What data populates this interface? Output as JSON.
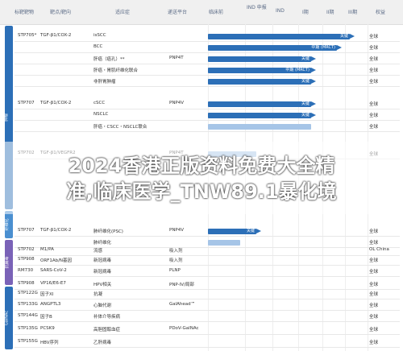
{
  "headers": {
    "target": "标靶靶物",
    "mechanism": "靶点/靶向",
    "indication": "适应症",
    "platform": "递送平台",
    "preclinical": "临床前",
    "ind_enabling": "IND\n申报",
    "ind": "IND",
    "phase1": "I期",
    "phase2": "II期",
    "phase3": "III期",
    "rights": "权益"
  },
  "sections": [
    {
      "label": "肿瘤",
      "color": "#2c6fb7"
    },
    {
      "label": "纤维化",
      "color": "#4a8fd0"
    },
    {
      "label": "抗病毒",
      "color": "#7a62b7"
    },
    {
      "label": "GalNAc",
      "color": "#2c6fb7"
    }
  ],
  "rows": [
    {
      "c1": "STP705*",
      "c2": "TGF-β1/COX-2",
      "c3": "isSCC",
      "c4": "",
      "c5": "全球",
      "bar": 0.88,
      "btxt": "关键"
    },
    {
      "c1": "",
      "c2": "",
      "c3": "BCC",
      "c4": "",
      "c5": "全球",
      "bar": 0.8,
      "btxt": "中期 (MRCT)"
    },
    {
      "c1": "",
      "c2": "",
      "c3": "肝癌（癌孔）**",
      "c4": "PNP4T",
      "c5": "全球",
      "bar": 0.64,
      "btxt": "关键"
    },
    {
      "c1": "",
      "c2": "",
      "c3": "肝癌・胃肌纤维化联合",
      "c4": "",
      "c5": "全球",
      "bar": 0.64,
      "btxt": "中期 (MRCT)"
    },
    {
      "c1": "",
      "c2": "",
      "c3": "非肝胃肿瘤",
      "c4": "",
      "c5": "全球",
      "bar": 0.64,
      "btxt": "关键"
    },
    {
      "c1": "STP707",
      "c2": "TGF-β1/COX-2",
      "c3": "cSCC",
      "c4": "PNP4V",
      "c5": "全球",
      "bar": 0.64,
      "btxt": "关键"
    },
    {
      "c1": "",
      "c2": "",
      "c3": "NSCLC",
      "c4": "",
      "c5": "全球",
      "bar": 0.64,
      "btxt": "关键"
    },
    {
      "c1": "",
      "c2": "",
      "c3": "肝癌・CSCC・NSCLC联合",
      "c4": "",
      "c5": "全球",
      "bar": 0.64,
      "btxt": ""
    },
    {
      "c1": "STP702",
      "c2": "TGF-β1/VEGFR2",
      "c3": "",
      "c4": "PNP4T",
      "c5": "全球",
      "bar": 0.3,
      "btxt": ""
    },
    {
      "c1": "STP707",
      "c2": "TGF-β1/COX-2",
      "c3": "肺纤维化(PSC)",
      "c4": "PNP4V",
      "c5": "全球",
      "bar": 0.3,
      "btxt": "关键"
    },
    {
      "c1": "",
      "c2": "",
      "c3": "肺纤维化",
      "c4": "",
      "c5": "全球",
      "bar": 0.2,
      "btxt": ""
    },
    {
      "c1": "STP702",
      "c2": "M1/PA",
      "c3": "流感",
      "c4": "吸入剂",
      "c5": "OL China",
      "bar": 0.0,
      "btxt": ""
    },
    {
      "c1": "STP908",
      "c2": "ORF1Ab/N基因",
      "c3": "新冠病毒",
      "c4": "吸入剂",
      "c5": "全球",
      "bar": 0.0,
      "btxt": ""
    },
    {
      "c1": "RM730",
      "c2": "SARS-CoV-2",
      "c3": "新冠病毒",
      "c4": "PLNP",
      "c5": "全球",
      "bar": 0.0,
      "btxt": ""
    },
    {
      "c1": "STP908",
      "c2": "VP16/E6-E7",
      "c3": "HPV相关",
      "c4": "PNP-IV/局部",
      "c5": "全球",
      "bar": 0.0,
      "btxt": ""
    },
    {
      "c1": "STP122G",
      "c2": "因子XI",
      "c3": "抗凝",
      "c4": "",
      "c5": "全球",
      "bar": 0.0,
      "btxt": ""
    },
    {
      "c1": "STP133G",
      "c2": "ANGPTL3",
      "c3": "心脑代谢",
      "c4": "GalAhead™",
      "c5": "全球",
      "bar": 0.0,
      "btxt": ""
    },
    {
      "c1": "STP144G",
      "c2": "因子B",
      "c3": "补体介导疾病",
      "c4": "",
      "c5": "全球",
      "bar": 0.0,
      "btxt": ""
    },
    {
      "c1": "STP135G",
      "c2": "PCSK9",
      "c3": "高胆固醇血症",
      "c4": "PDoV-GalNAc",
      "c5": "全球",
      "bar": 0.0,
      "btxt": ""
    },
    {
      "c1": "STP155G",
      "c2": "HBV序列",
      "c3": "乙肝病毒",
      "c4": "",
      "c5": "全球",
      "bar": 0.0,
      "btxt": ""
    }
  ],
  "overlay": {
    "line1": "2024香港正版资料免费大全精",
    "line2": "准,临床医学_TNW89.1暴化境"
  }
}
